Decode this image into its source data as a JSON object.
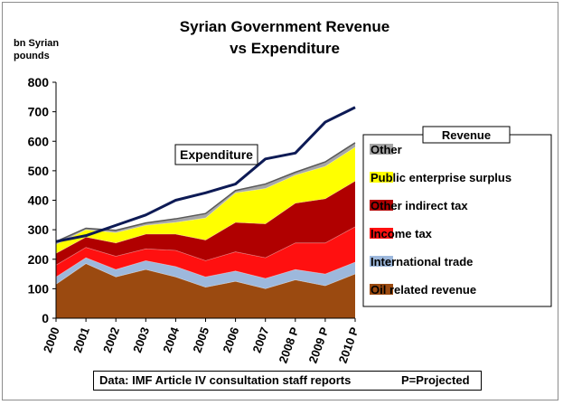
{
  "chart_data": {
    "type": "area",
    "title_line1": "Syrian Government Revenue",
    "title_line2": "vs Expenditure",
    "ylabel_line1": "bn Syrian",
    "ylabel_line2": "pounds",
    "ylim": [
      0,
      800
    ],
    "yticks": [
      0,
      100,
      200,
      300,
      400,
      500,
      600,
      700,
      800
    ],
    "grid": false,
    "categories": [
      "2000",
      "2001",
      "2002",
      "2003",
      "2004",
      "2005",
      "2006",
      "2007",
      "2008 P",
      "2009 P",
      "2010 P"
    ],
    "stack_order": [
      "Oil related revenue",
      "International trade",
      "Income tax",
      "Other indirect tax",
      "Public enterprise surplus",
      "Other"
    ],
    "series": [
      {
        "name": "Oil related revenue",
        "color": "#9b4a10",
        "values": [
          115,
          185,
          140,
          165,
          140,
          105,
          125,
          100,
          130,
          110,
          150
        ]
      },
      {
        "name": "International trade",
        "color": "#9db8dc",
        "values": [
          25,
          20,
          25,
          30,
          35,
          35,
          35,
          35,
          35,
          40,
          40
        ]
      },
      {
        "name": "Income tax",
        "color": "#ff1010",
        "values": [
          40,
          35,
          45,
          40,
          55,
          55,
          65,
          70,
          90,
          105,
          120
        ]
      },
      {
        "name": "Other indirect tax",
        "color": "#b00000",
        "values": [
          40,
          35,
          45,
          50,
          55,
          70,
          100,
          115,
          135,
          150,
          155
        ]
      },
      {
        "name": "Public enterprise surplus",
        "color": "#ffff00",
        "values": [
          30,
          25,
          35,
          30,
          40,
          75,
          100,
          120,
          95,
          110,
          115
        ]
      },
      {
        "name": "Other",
        "color": "#a6a6a6",
        "values": [
          10,
          5,
          8,
          8,
          12,
          15,
          8,
          15,
          10,
          15,
          15
        ]
      }
    ],
    "expenditure": {
      "name": "Expenditure",
      "color": "#0d1a55",
      "values": [
        260,
        280,
        315,
        350,
        400,
        425,
        455,
        540,
        560,
        665,
        715
      ]
    },
    "legend": {
      "title": "Revenue",
      "placement": "right",
      "entries": [
        "Other",
        "Public enterprise surplus",
        "Other indirect tax",
        "Income tax",
        "International trade",
        "Oil related revenue"
      ]
    },
    "annotation": "Expenditure",
    "source_text": "Data: IMF Article IV consultation staff reports",
    "projected_note": "P=Projected"
  }
}
